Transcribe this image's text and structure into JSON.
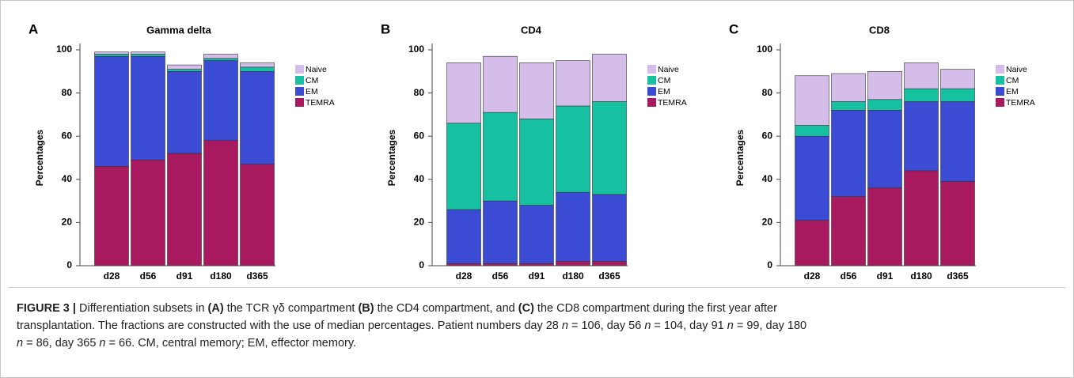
{
  "chart_data": [
    {
      "type": "stacked-bar",
      "panel": "A",
      "title": "Gamma delta",
      "y_label": "Percentages",
      "categories": [
        "d28",
        "d56",
        "d91",
        "d180",
        "d365"
      ],
      "ylim": [
        0,
        100
      ],
      "yticks": [
        0,
        20,
        40,
        60,
        80,
        100
      ],
      "series": [
        {
          "name": "TEMRA",
          "color": "#a8195f",
          "values": [
            46,
            49,
            52,
            58,
            47
          ]
        },
        {
          "name": "EM",
          "color": "#3c4bd4",
          "values": [
            51,
            48,
            38,
            37,
            43
          ]
        },
        {
          "name": "CM",
          "color": "#16c1a2",
          "values": [
            1,
            1,
            1,
            1,
            2
          ]
        },
        {
          "name": "Naive",
          "color": "#d4bde8",
          "values": [
            1,
            1,
            2,
            2,
            2
          ]
        }
      ]
    },
    {
      "type": "stacked-bar",
      "panel": "B",
      "title": "CD4",
      "y_label": "Percentages",
      "categories": [
        "d28",
        "d56",
        "d91",
        "d180",
        "d365"
      ],
      "ylim": [
        0,
        100
      ],
      "yticks": [
        0,
        20,
        40,
        60,
        80,
        100
      ],
      "series": [
        {
          "name": "TEMRA",
          "color": "#a8195f",
          "values": [
            1,
            1,
            1,
            2,
            2
          ]
        },
        {
          "name": "EM",
          "color": "#3c4bd4",
          "values": [
            25,
            29,
            27,
            32,
            31
          ]
        },
        {
          "name": "CM",
          "color": "#16c1a2",
          "values": [
            40,
            41,
            40,
            40,
            43
          ]
        },
        {
          "name": "Naive",
          "color": "#d4bde8",
          "values": [
            28,
            26,
            26,
            21,
            22
          ]
        }
      ]
    },
    {
      "type": "stacked-bar",
      "panel": "C",
      "title": "CD8",
      "y_label": "Percentages",
      "categories": [
        "d28",
        "d56",
        "d91",
        "d180",
        "d365"
      ],
      "ylim": [
        0,
        100
      ],
      "yticks": [
        0,
        20,
        40,
        60,
        80,
        100
      ],
      "series": [
        {
          "name": "TEMRA",
          "color": "#a8195f",
          "values": [
            21,
            32,
            36,
            44,
            39
          ]
        },
        {
          "name": "EM",
          "color": "#3c4bd4",
          "values": [
            39,
            40,
            36,
            32,
            37
          ]
        },
        {
          "name": "CM",
          "color": "#16c1a2",
          "values": [
            5,
            4,
            5,
            6,
            6
          ]
        },
        {
          "name": "Naive",
          "color": "#d4bde8",
          "values": [
            23,
            13,
            13,
            12,
            9
          ]
        }
      ]
    }
  ],
  "caption": [
    {
      "text": "FIGURE 3 | ",
      "bold": true
    },
    {
      "text": "Differentiation subsets in "
    },
    {
      "text": "(A)",
      "bold": true
    },
    {
      "text": " the TCR γδ compartment "
    },
    {
      "text": "(B)",
      "bold": true
    },
    {
      "text": " the CD4 compartment, and "
    },
    {
      "text": "(C)",
      "bold": true
    },
    {
      "text": " the CD8 compartment during the first year after transplantation. The fractions are constructed with the use of median percentages. Patient numbers day 28 "
    },
    {
      "text": "n",
      "italic": true
    },
    {
      "text": " = 106, day 56 "
    },
    {
      "text": "n",
      "italic": true
    },
    {
      "text": " = 104, day 91 "
    },
    {
      "text": "n",
      "italic": true
    },
    {
      "text": " = 99, day 180 "
    },
    {
      "text": "n",
      "italic": true
    },
    {
      "text": " = 86, day 365 "
    },
    {
      "text": "n",
      "italic": true
    },
    {
      "text": " = 66. CM, central memory; EM, effector memory."
    }
  ]
}
